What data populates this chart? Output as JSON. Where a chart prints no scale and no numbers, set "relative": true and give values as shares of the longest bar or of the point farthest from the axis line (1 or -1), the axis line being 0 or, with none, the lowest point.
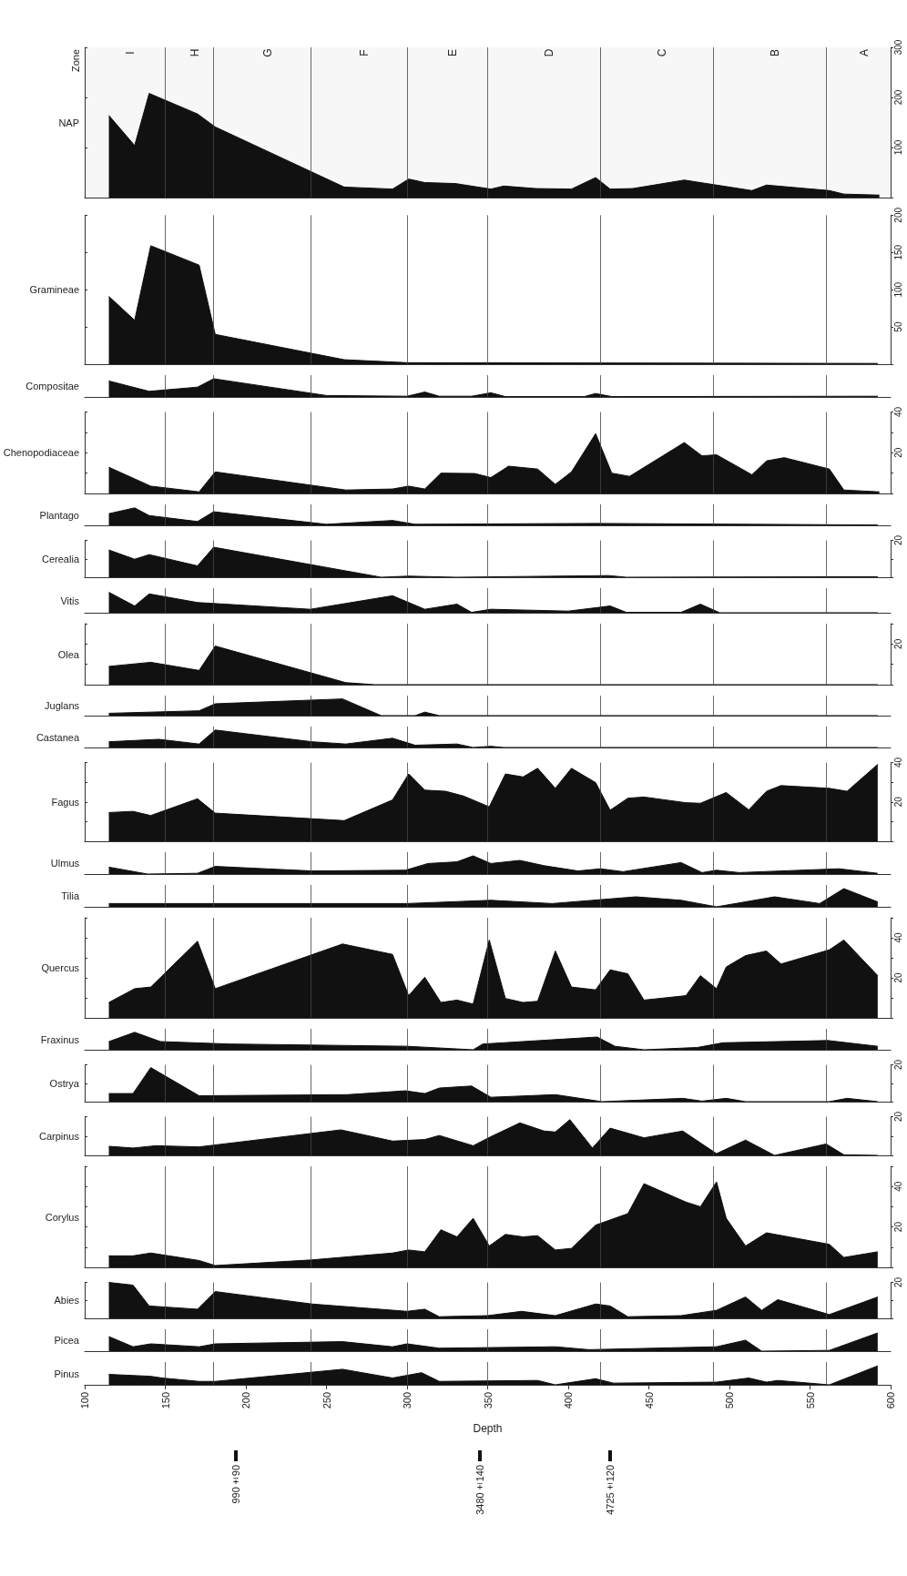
{
  "chart_data": [
    {
      "type": "area",
      "ylabel": "NAP",
      "annotations": [
        "Zone"
      ],
      "bands": [
        {
          "axis": "x",
          "from": 100,
          "to": 150,
          "label": "I"
        },
        {
          "axis": "x",
          "from": 150,
          "to": 180,
          "label": "H"
        },
        {
          "axis": "x",
          "from": 180,
          "to": 240,
          "label": "G"
        },
        {
          "axis": "x",
          "from": 240,
          "to": 300,
          "label": "F"
        },
        {
          "axis": "x",
          "from": 300,
          "to": 350,
          "label": "E"
        },
        {
          "axis": "x",
          "from": 350,
          "to": 420,
          "label": "D"
        },
        {
          "axis": "x",
          "from": 420,
          "to": 490,
          "label": "C"
        },
        {
          "axis": "x",
          "from": 490,
          "to": 560,
          "label": "B"
        },
        {
          "axis": "x",
          "from": 560,
          "to": 600,
          "label": "A"
        }
      ],
      "xlim": [
        100,
        600
      ],
      "ylim": [
        0,
        300
      ],
      "yticks": [
        {
          "value": 0,
          "label": null
        },
        100,
        200,
        300
      ],
      "tick_labels": "y",
      "color": "#111111",
      "x": [
        115,
        131,
        140,
        170,
        181,
        261,
        291,
        301,
        311,
        330,
        352,
        360,
        380,
        402,
        417,
        426,
        440,
        472,
        492,
        514,
        523,
        562,
        571,
        593
      ],
      "values": [
        164,
        104,
        208,
        167,
        141,
        21,
        17,
        37,
        30,
        28,
        17,
        23,
        18,
        17,
        40,
        17,
        18,
        35,
        25,
        14,
        25,
        14,
        7,
        5
      ],
      "ref_lines": [
        {
          "axis": "x",
          "value": 150
        },
        {
          "axis": "x",
          "value": 180
        },
        {
          "axis": "x",
          "value": 240
        },
        {
          "axis": "x",
          "value": 300
        },
        {
          "axis": "x",
          "value": 350
        },
        {
          "axis": "x",
          "value": 420
        },
        {
          "axis": "x",
          "value": 490
        },
        {
          "axis": "x",
          "value": 560
        }
      ]
    },
    {
      "type": "area",
      "ylabel": "Gramineae",
      "xlim": [
        100,
        600
      ],
      "ylim": [
        0,
        200
      ],
      "yticks": [
        {
          "value": 0,
          "label": null
        },
        50,
        100,
        150,
        200
      ],
      "tick_labels": "y",
      "color": "#111111",
      "x": [
        115,
        131,
        141,
        171,
        181,
        261,
        300,
        592
      ],
      "values": [
        91,
        59,
        159,
        133,
        40,
        6,
        2,
        1
      ],
      "ref_lines": [
        {
          "axis": "x",
          "value": 150
        },
        {
          "axis": "x",
          "value": 180
        },
        {
          "axis": "x",
          "value": 240
        },
        {
          "axis": "x",
          "value": 300
        },
        {
          "axis": "x",
          "value": 350
        },
        {
          "axis": "x",
          "value": 420
        },
        {
          "axis": "x",
          "value": 490
        },
        {
          "axis": "x",
          "value": 560
        }
      ]
    },
    {
      "type": "area",
      "ylabel": "Compositae",
      "relative": true,
      "xlim": [
        100,
        600
      ],
      "tick_labels": false,
      "color": "#111111",
      "x": [
        115,
        140,
        170,
        180,
        250,
        300,
        311,
        320,
        340,
        352,
        361,
        410,
        417,
        427,
        592
      ],
      "values": [
        0.88,
        0.31,
        0.54,
        1,
        0.08,
        0.04,
        0.27,
        0.04,
        0.04,
        0.23,
        0.02,
        0.02,
        0.19,
        0.02,
        0.04
      ],
      "ref_lines": [
        {
          "axis": "x",
          "value": 150
        },
        {
          "axis": "x",
          "value": 180
        },
        {
          "axis": "x",
          "value": 240
        },
        {
          "axis": "x",
          "value": 300
        },
        {
          "axis": "x",
          "value": 350
        },
        {
          "axis": "x",
          "value": 420
        },
        {
          "axis": "x",
          "value": 490
        },
        {
          "axis": "x",
          "value": 560
        }
      ]
    },
    {
      "type": "area",
      "ylabel": "Chenopodiaceae",
      "xlim": [
        100,
        600
      ],
      "ylim": [
        0,
        40
      ],
      "yticks": [
        {
          "value": 0,
          "label": null
        },
        {
          "value": 10,
          "label": null
        },
        20,
        {
          "value": 30,
          "label": null
        },
        40
      ],
      "tick_labels": "y",
      "color": "#111111",
      "x": [
        115,
        141,
        171,
        181,
        262,
        291,
        301,
        311,
        321,
        342,
        352,
        363,
        381,
        392,
        402,
        417,
        427,
        438,
        472,
        483,
        492,
        514,
        523,
        534,
        562,
        571,
        593
      ],
      "values": [
        12.9,
        3.6,
        0.8,
        10.6,
        1.7,
        2.2,
        3.6,
        2.2,
        10,
        9.8,
        7.8,
        13.4,
        12,
        4.5,
        10.6,
        29.4,
        10,
        8.4,
        25,
        18.5,
        19,
        9.2,
        16,
        17.6,
        12,
        1.7,
        0.8
      ],
      "ref_lines": [
        {
          "axis": "x",
          "value": 150
        },
        {
          "axis": "x",
          "value": 180
        },
        {
          "axis": "x",
          "value": 240
        },
        {
          "axis": "x",
          "value": 300
        },
        {
          "axis": "x",
          "value": 350
        },
        {
          "axis": "x",
          "value": 420
        },
        {
          "axis": "x",
          "value": 490
        },
        {
          "axis": "x",
          "value": 560
        }
      ]
    },
    {
      "type": "area",
      "ylabel": "Plantago",
      "relative": true,
      "xlim": [
        100,
        600
      ],
      "tick_labels": false,
      "color": "#111111",
      "x": [
        115,
        131,
        140,
        170,
        180,
        250,
        291,
        305,
        417,
        592
      ],
      "values": [
        0.67,
        1,
        0.56,
        0.22,
        0.78,
        0.06,
        0.28,
        0.06,
        0.11,
        0.02
      ],
      "ref_lines": [
        {
          "axis": "x",
          "value": 150
        },
        {
          "axis": "x",
          "value": 180
        },
        {
          "axis": "x",
          "value": 240
        },
        {
          "axis": "x",
          "value": 300
        },
        {
          "axis": "x",
          "value": 350
        },
        {
          "axis": "x",
          "value": 420
        },
        {
          "axis": "x",
          "value": 490
        },
        {
          "axis": "x",
          "value": 560
        }
      ]
    },
    {
      "type": "area",
      "ylabel": "Cerealia",
      "xlim": [
        100,
        600
      ],
      "ylim": [
        0,
        20
      ],
      "yticks": [
        {
          "value": 0,
          "label": null
        },
        {
          "value": 10,
          "label": null
        },
        20
      ],
      "tick_labels": "y",
      "color": "#111111",
      "x": [
        115,
        131,
        140,
        170,
        180,
        284,
        301,
        330,
        425,
        436,
        592
      ],
      "values": [
        14.8,
        9.8,
        12.3,
        6.2,
        16.3,
        0,
        0.6,
        0,
        0.9,
        0,
        0.3
      ],
      "ref_lines": [
        {
          "axis": "x",
          "value": 150
        },
        {
          "axis": "x",
          "value": 180
        },
        {
          "axis": "x",
          "value": 240
        },
        {
          "axis": "x",
          "value": 300
        },
        {
          "axis": "x",
          "value": 350
        },
        {
          "axis": "x",
          "value": 420
        },
        {
          "axis": "x",
          "value": 490
        },
        {
          "axis": "x",
          "value": 560
        }
      ]
    },
    {
      "type": "area",
      "ylabel": "Vitis",
      "relative": true,
      "xlim": [
        100,
        600
      ],
      "tick_labels": false,
      "color": "#111111",
      "x": [
        115,
        131,
        140,
        170,
        240,
        291,
        311,
        331,
        340,
        352,
        400,
        426,
        436,
        470,
        482,
        494,
        592
      ],
      "values": [
        1,
        0.33,
        0.92,
        0.5,
        0.17,
        0.83,
        0.17,
        0.42,
        0.02,
        0.17,
        0.08,
        0.33,
        0.02,
        0.02,
        0.42,
        0,
        0
      ],
      "ref_lines": [
        {
          "axis": "x",
          "value": 150
        },
        {
          "axis": "x",
          "value": 180
        },
        {
          "axis": "x",
          "value": 240
        },
        {
          "axis": "x",
          "value": 300
        },
        {
          "axis": "x",
          "value": 350
        },
        {
          "axis": "x",
          "value": 420
        },
        {
          "axis": "x",
          "value": 490
        },
        {
          "axis": "x",
          "value": 560
        }
      ]
    },
    {
      "type": "area",
      "ylabel": "Olea",
      "xlim": [
        100,
        600
      ],
      "ylim": [
        0,
        30
      ],
      "yticks": [
        {
          "value": 0,
          "label": null
        },
        {
          "value": 10,
          "label": null
        },
        20,
        {
          "value": 30,
          "label": null
        }
      ],
      "tick_labels": "y",
      "color": "#111111",
      "x": [
        115,
        141,
        171,
        181,
        262,
        280,
        592
      ],
      "values": [
        9,
        11,
        7,
        19,
        1,
        0,
        0
      ],
      "ref_lines": [
        {
          "axis": "x",
          "value": 150
        },
        {
          "axis": "x",
          "value": 180
        },
        {
          "axis": "x",
          "value": 240
        },
        {
          "axis": "x",
          "value": 300
        },
        {
          "axis": "x",
          "value": 350
        },
        {
          "axis": "x",
          "value": 420
        },
        {
          "axis": "x",
          "value": 490
        },
        {
          "axis": "x",
          "value": 560
        }
      ]
    },
    {
      "type": "area",
      "ylabel": "Juglans",
      "relative": true,
      "xlim": [
        100,
        600
      ],
      "tick_labels": false,
      "color": "#111111",
      "x": [
        115,
        171,
        181,
        260,
        284,
        305,
        311,
        320,
        592
      ],
      "values": [
        0.14,
        0.29,
        0.71,
        1,
        0,
        0,
        0.21,
        0,
        0
      ],
      "ref_lines": [
        {
          "axis": "x",
          "value": 150
        },
        {
          "axis": "x",
          "value": 180
        },
        {
          "axis": "x",
          "value": 240
        },
        {
          "axis": "x",
          "value": 300
        },
        {
          "axis": "x",
          "value": 350
        },
        {
          "axis": "x",
          "value": 420
        },
        {
          "axis": "x",
          "value": 490
        },
        {
          "axis": "x",
          "value": 560
        }
      ]
    },
    {
      "type": "area",
      "ylabel": "Castanea",
      "relative": true,
      "xlim": [
        100,
        600
      ],
      "tick_labels": false,
      "color": "#111111",
      "x": [
        115,
        146,
        171,
        181,
        241,
        262,
        291,
        305,
        331,
        341,
        352,
        360,
        592
      ],
      "values": [
        0.33,
        0.47,
        0.2,
        1,
        0.33,
        0.2,
        0.53,
        0.13,
        0.2,
        0,
        0.07,
        0,
        0
      ],
      "ref_lines": [
        {
          "axis": "x",
          "value": 150
        },
        {
          "axis": "x",
          "value": 180
        },
        {
          "axis": "x",
          "value": 240
        },
        {
          "axis": "x",
          "value": 300
        },
        {
          "axis": "x",
          "value": 350
        },
        {
          "axis": "x",
          "value": 420
        },
        {
          "axis": "x",
          "value": 490
        },
        {
          "axis": "x",
          "value": 560
        }
      ]
    },
    {
      "type": "area",
      "ylabel": "Fagus",
      "xlim": [
        100,
        600
      ],
      "ylim": [
        0,
        40
      ],
      "yticks": [
        {
          "value": 0,
          "label": null
        },
        {
          "value": 10,
          "label": null
        },
        20,
        {
          "value": 30,
          "label": null
        },
        40
      ],
      "tick_labels": "y",
      "color": "#111111",
      "x": [
        115,
        130,
        141,
        170,
        181,
        261,
        291,
        301,
        311,
        324,
        335,
        351,
        361,
        372,
        381,
        392,
        402,
        417,
        426,
        437,
        447,
        473,
        482,
        498,
        512,
        523,
        532,
        562,
        573,
        592
      ],
      "values": [
        14.6,
        15.2,
        13.1,
        21.6,
        14.3,
        10.5,
        21,
        34.2,
        26,
        25.4,
        23,
        17.5,
        34.2,
        32.7,
        37.1,
        26.9,
        37.1,
        29.8,
        15.8,
        21.9,
        22.5,
        19.6,
        19.3,
        24.8,
        16,
        25.4,
        28.3,
        26.9,
        25.4,
        39.1
      ],
      "ref_lines": [
        {
          "axis": "x",
          "value": 150
        },
        {
          "axis": "x",
          "value": 180
        },
        {
          "axis": "x",
          "value": 240
        },
        {
          "axis": "x",
          "value": 300
        },
        {
          "axis": "x",
          "value": 350
        },
        {
          "axis": "x",
          "value": 420
        },
        {
          "axis": "x",
          "value": 490
        },
        {
          "axis": "x",
          "value": 560
        }
      ]
    },
    {
      "type": "area",
      "ylabel": "Ulmus",
      "relative": true,
      "xlim": [
        100,
        600
      ],
      "tick_labels": false,
      "color": "#111111",
      "x": [
        115,
        139,
        170,
        181,
        241,
        299,
        313,
        331,
        341,
        352,
        370,
        385,
        406,
        420,
        434,
        470,
        483,
        492,
        506,
        568,
        592
      ],
      "values": [
        0.38,
        0,
        0.04,
        0.42,
        0.17,
        0.21,
        0.58,
        0.67,
        1,
        0.58,
        0.75,
        0.46,
        0.17,
        0.29,
        0.13,
        0.63,
        0.08,
        0.21,
        0.08,
        0.29,
        0.04
      ],
      "ref_lines": [
        {
          "axis": "x",
          "value": 150
        },
        {
          "axis": "x",
          "value": 180
        },
        {
          "axis": "x",
          "value": 240
        },
        {
          "axis": "x",
          "value": 300
        },
        {
          "axis": "x",
          "value": 350
        },
        {
          "axis": "x",
          "value": 420
        },
        {
          "axis": "x",
          "value": 490
        },
        {
          "axis": "x",
          "value": 560
        }
      ]
    },
    {
      "type": "area",
      "ylabel": "Tilia",
      "relative": true,
      "xlim": [
        100,
        600
      ],
      "tick_labels": false,
      "color": "#111111",
      "x": [
        115,
        300,
        352,
        390,
        442,
        470,
        492,
        528,
        556,
        571,
        592
      ],
      "values": [
        0.18,
        0.18,
        0.36,
        0.18,
        0.55,
        0.36,
        0,
        0.55,
        0.18,
        1,
        0.27
      ],
      "ref_lines": [
        {
          "axis": "x",
          "value": 150
        },
        {
          "axis": "x",
          "value": 180
        },
        {
          "axis": "x",
          "value": 240
        },
        {
          "axis": "x",
          "value": 300
        },
        {
          "axis": "x",
          "value": 350
        },
        {
          "axis": "x",
          "value": 420
        },
        {
          "axis": "x",
          "value": 490
        },
        {
          "axis": "x",
          "value": 560
        }
      ]
    },
    {
      "type": "area",
      "ylabel": "Quercus",
      "xlim": [
        100,
        600
      ],
      "ylim": [
        0,
        50
      ],
      "yticks": [
        {
          "value": 0,
          "label": null
        },
        {
          "value": 10,
          "label": null
        },
        20,
        {
          "value": 30,
          "label": null
        },
        40,
        {
          "value": 50,
          "label": null
        }
      ],
      "tick_labels": "y",
      "color": "#111111",
      "x": [
        115,
        131,
        141,
        170,
        181,
        260,
        291,
        301,
        311,
        321,
        331,
        341,
        351,
        361,
        372,
        381,
        392,
        402,
        417,
        426,
        437,
        447,
        473,
        482,
        492,
        498,
        510,
        523,
        532,
        562,
        571,
        592
      ],
      "values": [
        7.7,
        14.6,
        15.4,
        38.3,
        14.6,
        36.9,
        31.7,
        11.1,
        20.3,
        7.7,
        8.9,
        6.9,
        38.9,
        9.7,
        7.7,
        8.3,
        33.4,
        15.4,
        14,
        24,
        22,
        8.9,
        11.1,
        21.1,
        14.6,
        25.4,
        31.1,
        33.4,
        26.9,
        34,
        38.9,
        21.1
      ],
      "ref_lines": [
        {
          "axis": "x",
          "value": 150
        },
        {
          "axis": "x",
          "value": 180
        },
        {
          "axis": "x",
          "value": 240
        },
        {
          "axis": "x",
          "value": 300
        },
        {
          "axis": "x",
          "value": 350
        },
        {
          "axis": "x",
          "value": 420
        },
        {
          "axis": "x",
          "value": 490
        },
        {
          "axis": "x",
          "value": 560
        }
      ]
    },
    {
      "type": "area",
      "ylabel": "Fraxinus",
      "relative": true,
      "xlim": [
        100,
        600
      ],
      "tick_labels": false,
      "color": "#111111",
      "x": [
        115,
        131,
        147,
        190,
        300,
        341,
        347,
        418,
        429,
        447,
        480,
        496,
        561,
        592
      ],
      "values": [
        0.47,
        1,
        0.47,
        0.33,
        0.2,
        0,
        0.33,
        0.73,
        0.2,
        0,
        0.13,
        0.4,
        0.53,
        0.2
      ],
      "ref_lines": [
        {
          "axis": "x",
          "value": 150
        },
        {
          "axis": "x",
          "value": 180
        },
        {
          "axis": "x",
          "value": 240
        },
        {
          "axis": "x",
          "value": 300
        },
        {
          "axis": "x",
          "value": 350
        },
        {
          "axis": "x",
          "value": 420
        },
        {
          "axis": "x",
          "value": 490
        },
        {
          "axis": "x",
          "value": 560
        }
      ]
    },
    {
      "type": "area",
      "ylabel": "Ostrya",
      "xlim": [
        100,
        600
      ],
      "ylim": [
        0,
        20
      ],
      "yticks": [
        {
          "value": 0,
          "label": null
        },
        {
          "value": 10,
          "label": null
        },
        20
      ],
      "tick_labels": "y",
      "color": "#111111",
      "x": [
        115,
        130,
        141,
        171,
        263,
        299,
        311,
        320,
        340,
        352,
        392,
        421,
        471,
        483,
        498,
        510,
        562,
        573,
        592
      ],
      "values": [
        4.4,
        4.4,
        18.5,
        3.2,
        3.8,
        5.9,
        4.4,
        7.4,
        8.5,
        2.4,
        3.8,
        0,
        1.8,
        0.3,
        1.8,
        0,
        0,
        1.8,
        0
      ],
      "ref_lines": [
        {
          "axis": "x",
          "value": 150
        },
        {
          "axis": "x",
          "value": 180
        },
        {
          "axis": "x",
          "value": 240
        },
        {
          "axis": "x",
          "value": 300
        },
        {
          "axis": "x",
          "value": 350
        },
        {
          "axis": "x",
          "value": 420
        },
        {
          "axis": "x",
          "value": 490
        },
        {
          "axis": "x",
          "value": 560
        }
      ]
    },
    {
      "type": "area",
      "ylabel": "Carpinus",
      "xlim": [
        100,
        600
      ],
      "ylim": [
        0,
        20
      ],
      "yticks": [
        {
          "value": 0,
          "label": null
        },
        {
          "value": 10,
          "label": null
        },
        20
      ],
      "tick_labels": "y",
      "color": "#111111",
      "x": [
        115,
        130,
        144,
        171,
        259,
        291,
        311,
        320,
        341,
        352,
        370,
        385,
        392,
        401,
        415,
        426,
        447,
        471,
        492,
        510,
        528,
        560,
        571,
        592
      ],
      "values": [
        4.7,
        3.8,
        5,
        4.4,
        13.2,
        7.4,
        8.2,
        10.3,
        5,
        9.7,
        16.8,
        12.6,
        12.1,
        18.5,
        3.8,
        14.1,
        9.1,
        12.6,
        0.9,
        7.9,
        0,
        5.9,
        0.3,
        0
      ],
      "ref_lines": [
        {
          "axis": "x",
          "value": 150
        },
        {
          "axis": "x",
          "value": 180
        },
        {
          "axis": "x",
          "value": 240
        },
        {
          "axis": "x",
          "value": 300
        },
        {
          "axis": "x",
          "value": 350
        },
        {
          "axis": "x",
          "value": 420
        },
        {
          "axis": "x",
          "value": 490
        },
        {
          "axis": "x",
          "value": 560
        }
      ]
    },
    {
      "type": "area",
      "ylabel": "Corylus",
      "xlim": [
        100,
        600
      ],
      "ylim": [
        0,
        50
      ],
      "yticks": [
        {
          "value": 0,
          "label": null
        },
        {
          "value": 10,
          "label": null
        },
        20,
        {
          "value": 30,
          "label": null
        },
        40,
        {
          "value": 50,
          "label": null
        }
      ],
      "tick_labels": "y",
      "color": "#111111",
      "x": [
        115,
        130,
        141,
        171,
        181,
        241,
        291,
        301,
        311,
        321,
        331,
        341,
        351,
        361,
        372,
        381,
        392,
        402,
        417,
        437,
        447,
        473,
        482,
        492,
        498,
        510,
        523,
        562,
        571,
        592
      ],
      "values": [
        5.7,
        5.7,
        7.1,
        3.4,
        0.9,
        3.7,
        7.1,
        8.6,
        7.7,
        18.6,
        15.1,
        24.3,
        10.6,
        16.3,
        15.1,
        15.7,
        8.6,
        9.4,
        20.9,
        26.6,
        41.4,
        32.3,
        30,
        42.3,
        24.3,
        10.6,
        17.1,
        11.4,
        4.9,
        7.7
      ],
      "ref_lines": [
        {
          "axis": "x",
          "value": 150
        },
        {
          "axis": "x",
          "value": 180
        },
        {
          "axis": "x",
          "value": 240
        },
        {
          "axis": "x",
          "value": 300
        },
        {
          "axis": "x",
          "value": 350
        },
        {
          "axis": "x",
          "value": 420
        },
        {
          "axis": "x",
          "value": 490
        },
        {
          "axis": "x",
          "value": 560
        }
      ]
    },
    {
      "type": "area",
      "ylabel": "Abies",
      "xlim": [
        100,
        600
      ],
      "ylim": [
        0,
        20
      ],
      "yticks": [
        {
          "value": 0,
          "label": null
        },
        {
          "value": 10,
          "label": null
        },
        20
      ],
      "tick_labels": "y",
      "color": "#111111",
      "x": [
        115,
        130,
        140,
        170,
        181,
        241,
        300,
        311,
        320,
        350,
        371,
        392,
        417,
        426,
        437,
        470,
        492,
        510,
        520,
        530,
        562,
        592
      ],
      "values": [
        20,
        18.5,
        6.9,
        5.1,
        14.9,
        8,
        3.9,
        5.1,
        0.9,
        1.5,
        3.9,
        1.5,
        8,
        6.9,
        0.9,
        1.5,
        4.5,
        11.9,
        4.5,
        10.4,
        2.1,
        11.9
      ],
      "ref_lines": [
        {
          "axis": "x",
          "value": 150
        },
        {
          "axis": "x",
          "value": 180
        },
        {
          "axis": "x",
          "value": 240
        },
        {
          "axis": "x",
          "value": 300
        },
        {
          "axis": "x",
          "value": 350
        },
        {
          "axis": "x",
          "value": 420
        },
        {
          "axis": "x",
          "value": 490
        },
        {
          "axis": "x",
          "value": 560
        }
      ]
    },
    {
      "type": "area",
      "ylabel": "Picea",
      "relative": true,
      "xlim": [
        100,
        600
      ],
      "tick_labels": false,
      "color": "#111111",
      "x": [
        115,
        130,
        141,
        171,
        181,
        260,
        291,
        300,
        320,
        392,
        413,
        492,
        510,
        520,
        562,
        592
      ],
      "values": [
        0.8,
        0.24,
        0.4,
        0.24,
        0.4,
        0.52,
        0.24,
        0.4,
        0.16,
        0.24,
        0.08,
        0.24,
        0.6,
        0,
        0.04,
        1
      ],
      "ref_lines": [
        {
          "axis": "x",
          "value": 150
        },
        {
          "axis": "x",
          "value": 180
        },
        {
          "axis": "x",
          "value": 240
        },
        {
          "axis": "x",
          "value": 300
        },
        {
          "axis": "x",
          "value": 350
        },
        {
          "axis": "x",
          "value": 420
        },
        {
          "axis": "x",
          "value": 490
        },
        {
          "axis": "x",
          "value": 560
        }
      ]
    },
    {
      "type": "area",
      "ylabel": "Pinus",
      "xlabel": "Depth",
      "relative": true,
      "xlim": [
        100,
        600
      ],
      "xticks": [
        100,
        150,
        200,
        250,
        300,
        350,
        400,
        450,
        500,
        550,
        600
      ],
      "tick_labels": "x",
      "color": "#111111",
      "x": [
        115,
        141,
        148,
        171,
        181,
        260,
        291,
        309,
        320,
        381,
        392,
        417,
        428,
        492,
        512,
        523,
        530,
        562,
        592
      ],
      "values": [
        0.55,
        0.45,
        0.36,
        0.18,
        0.18,
        0.82,
        0.36,
        0.64,
        0.18,
        0.23,
        0,
        0.32,
        0.09,
        0.14,
        0.36,
        0.14,
        0.23,
        0,
        1
      ],
      "annotations": [
        "990±90",
        "3480±140",
        "4725±120"
      ],
      "ref_lines": [
        {
          "axis": "x",
          "value": 150
        },
        {
          "axis": "x",
          "value": 180
        },
        {
          "axis": "x",
          "value": 240
        },
        {
          "axis": "x",
          "value": 300
        },
        {
          "axis": "x",
          "value": 350
        },
        {
          "axis": "x",
          "value": 420
        },
        {
          "axis": "x",
          "value": 490
        },
        {
          "axis": "x",
          "value": 560
        }
      ]
    }
  ]
}
